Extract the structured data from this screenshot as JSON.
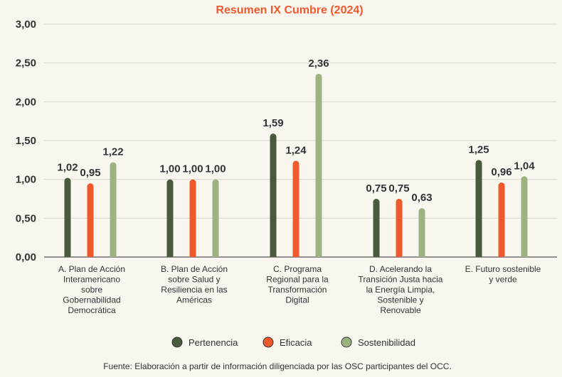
{
  "chart_data": {
    "type": "bar",
    "title": "Resumen IX Cumbre (2024)",
    "ylim": [
      0,
      3
    ],
    "yticks": [
      "0,00",
      "0,50",
      "1,00",
      "1,50",
      "2,00",
      "2,50",
      "3,00"
    ],
    "ytick_values": [
      0,
      0.5,
      1,
      1.5,
      2,
      2.5,
      3
    ],
    "grid": true,
    "categories": [
      [
        "A. Plan de Acción",
        "Interamericano",
        "sobre",
        "Gobernabilidad",
        "Democrática"
      ],
      [
        "B. Plan de Acción",
        "sobre Salud y",
        "Resiliencia en las",
        "Américas"
      ],
      [
        "C. Programa",
        "Regional para la",
        "Transformación",
        "Digital"
      ],
      [
        "D. Acelerando la",
        "Transición Justa hacia",
        "la Energía Limpia,",
        "Sostenible y",
        "Renovable"
      ],
      [
        "E. Futuro sostenible",
        "y verde"
      ]
    ],
    "series": [
      {
        "name": "Pertenencia",
        "color": "#4a5a3c",
        "values": [
          1.02,
          1.0,
          1.59,
          0.75,
          1.25
        ],
        "labels": [
          "1,02",
          "1,00",
          "1,59",
          "0,75",
          "1,25"
        ]
      },
      {
        "name": "Eficacia",
        "color": "#ee5a2c",
        "values": [
          0.95,
          1.0,
          1.24,
          0.75,
          0.96
        ],
        "labels": [
          "0,95",
          "1,00",
          "1,24",
          "0,75",
          "0,96"
        ]
      },
      {
        "name": "Sostenibilidad",
        "color": "#9db37f",
        "values": [
          1.22,
          1.0,
          2.36,
          0.63,
          1.04
        ],
        "labels": [
          "1,22",
          "1,00",
          "2,36",
          "0,63",
          "1,04"
        ]
      }
    ],
    "legend_position": "bottom",
    "source": "Fuente: Elaboración a partir de información diligenciada por las OSC participantes del OCC."
  },
  "colors": {
    "title": "#ee5a2c",
    "grid": "#d9d6cf",
    "axis": "#555555"
  }
}
